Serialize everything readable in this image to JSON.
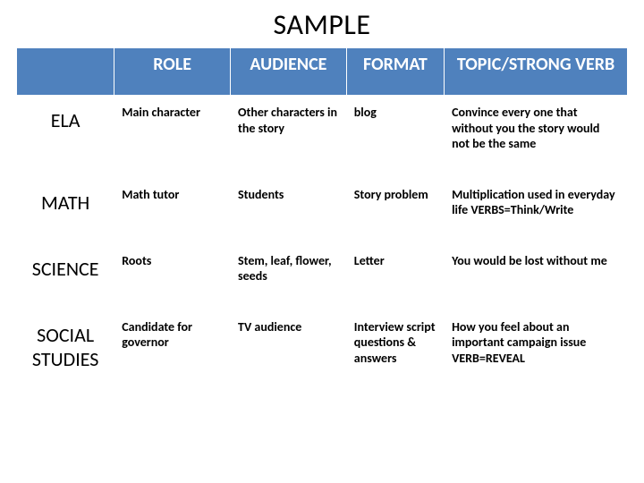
{
  "title": "SAMPLE",
  "headers": {
    "role": "ROLE",
    "audience": "AUDIENCE",
    "format": "FORMAT",
    "topic": "TOPIC/STRONG VERB"
  },
  "rows": [
    {
      "subject": "ELA",
      "role": "Main character",
      "audience": "Other characters in the story",
      "format": "blog",
      "topic": "Convince every one that without you the story would not be the same"
    },
    {
      "subject": "MATH",
      "role": "Math tutor",
      "audience": "Students",
      "format": "Story problem",
      "topic": "Multiplication used in everyday life VERBS=Think/Write"
    },
    {
      "subject": "SCIENCE",
      "role": "Roots",
      "audience": "Stem, leaf, flower, seeds",
      "format": "Letter",
      "topic": "You would be lost without me"
    },
    {
      "subject": "SOCIAL STUDIES",
      "role": "Candidate for governor",
      "audience": "TV audience",
      "format": "Interview script questions & answers",
      "topic": "How you feel about an important campaign issue VERB=REVEAL"
    }
  ],
  "colors": {
    "header_bg": "#4f81bd",
    "header_text": "#ffffff",
    "cell_text": "#000000",
    "border": "#ffffff",
    "page_bg": "#ffffff"
  },
  "layout": {
    "col_widths_pct": [
      16,
      19,
      19,
      16,
      30
    ],
    "title_fontsize": 32,
    "header_fontsize": 20,
    "rowhead_fontsize": 22,
    "cell_fontsize": 14
  }
}
